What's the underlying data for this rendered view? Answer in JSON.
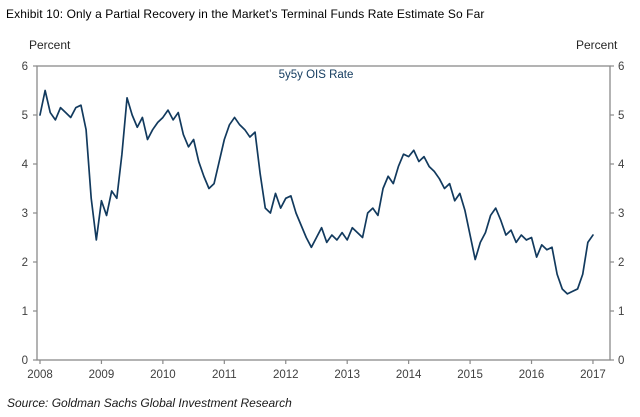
{
  "header": {
    "title": "Exhibit 10: Only a Partial Recovery in the Market’s Terminal Funds Rate Estimate So Far"
  },
  "chart": {
    "unit_left": "Percent",
    "unit_right": "Percent",
    "series_label": "5y5y OIS Rate"
  },
  "footer": {
    "source": "Source: Goldman Sachs Global Investment Research"
  },
  "colors": {
    "line": "#123a5e",
    "axis": "#8a8a8a",
    "tick_text": "#404040"
  },
  "chart_data": {
    "type": "line",
    "title": "5y5y OIS Rate",
    "xlabel": "",
    "ylabel": "Percent",
    "ylim": [
      0,
      6
    ],
    "xlim": [
      2008,
      2017.3
    ],
    "grid": false,
    "legend_position": "top-center-inside",
    "x_tick_labels": [
      "2008",
      "2009",
      "2010",
      "2011",
      "2012",
      "2013",
      "2014",
      "2015",
      "2016",
      "2017"
    ],
    "y_tick_labels": [
      "0",
      "1",
      "2",
      "3",
      "4",
      "5",
      "6"
    ],
    "y_ticks": [
      0,
      1,
      2,
      3,
      4,
      5,
      6
    ],
    "x_start_year": 2008,
    "x_step_months": 1,
    "series": [
      {
        "name": "5y5y OIS Rate",
        "values": [
          5.0,
          5.5,
          5.05,
          4.9,
          5.15,
          5.05,
          4.95,
          5.15,
          5.2,
          4.7,
          3.3,
          2.45,
          3.25,
          2.95,
          3.45,
          3.3,
          4.2,
          5.35,
          5.0,
          4.75,
          4.95,
          4.5,
          4.7,
          4.85,
          4.95,
          5.1,
          4.9,
          5.05,
          4.6,
          4.35,
          4.5,
          4.05,
          3.75,
          3.5,
          3.6,
          4.05,
          4.5,
          4.8,
          4.95,
          4.8,
          4.7,
          4.55,
          4.65,
          3.8,
          3.1,
          3.0,
          3.4,
          3.1,
          3.3,
          3.35,
          3.0,
          2.75,
          2.5,
          2.3,
          2.5,
          2.7,
          2.4,
          2.55,
          2.45,
          2.6,
          2.45,
          2.7,
          2.6,
          2.5,
          3.0,
          3.1,
          2.95,
          3.5,
          3.75,
          3.6,
          3.95,
          4.2,
          4.15,
          4.28,
          4.05,
          4.15,
          3.95,
          3.85,
          3.7,
          3.5,
          3.6,
          3.25,
          3.4,
          3.05,
          2.55,
          2.05,
          2.4,
          2.6,
          2.95,
          3.1,
          2.85,
          2.55,
          2.65,
          2.4,
          2.55,
          2.45,
          2.5,
          2.1,
          2.35,
          2.25,
          2.3,
          1.75,
          1.45,
          1.35,
          1.4,
          1.45,
          1.75,
          2.4,
          2.55
        ]
      }
    ]
  }
}
